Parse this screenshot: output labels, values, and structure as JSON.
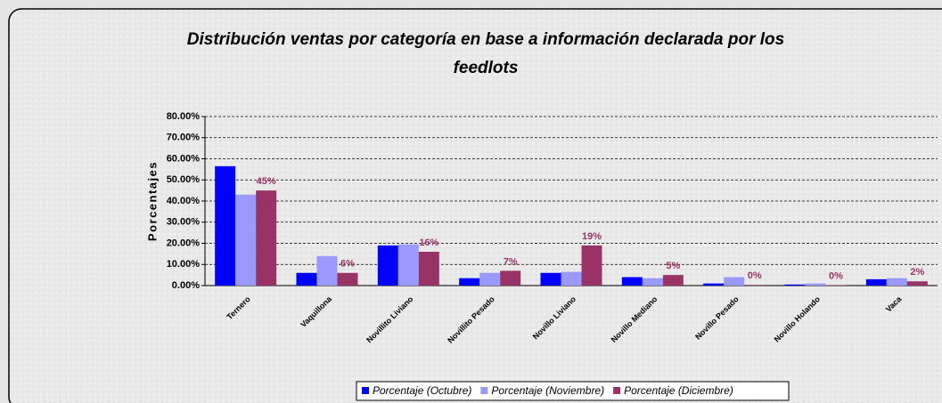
{
  "chart_data": {
    "type": "bar",
    "title": "Distribución ventas por categoría en base a información declarada por los feedlots",
    "ylabel": "Porcentajes",
    "categories": [
      "Ternero",
      "Vaquillona",
      "Novillito Liviano",
      "Novillito Pesado",
      "Novillo Liviano",
      "Novillo Mediano",
      "Novillo Pesado",
      "Novillo Holando",
      "Vaca"
    ],
    "series": [
      {
        "name": "Porcentaje (Octubre)",
        "color": "#0000ff",
        "values": [
          56.5,
          6,
          19,
          3.5,
          6,
          4,
          1,
          0.5,
          3
        ]
      },
      {
        "name": "Porcentaje (Noviembre)",
        "color": "#9999ff",
        "values": [
          43,
          14,
          19.5,
          6,
          6.5,
          3.5,
          4,
          1,
          3.5
        ]
      },
      {
        "name": "Porcentaje (Diciembre)",
        "color": "#993366",
        "values": [
          45,
          6,
          16,
          7,
          19,
          5,
          0.3,
          0.2,
          2
        ],
        "value_labels": [
          "45%",
          "6%",
          "16%",
          "7%",
          "19%",
          "5%",
          "0%",
          "0%",
          "2%"
        ]
      }
    ],
    "ylim": [
      0,
      80
    ],
    "yticks": [
      {
        "value": 0,
        "label": "0.00%"
      },
      {
        "value": 10,
        "label": "10.00%"
      },
      {
        "value": 20,
        "label": "20.00%"
      },
      {
        "value": 30,
        "label": "30.00%"
      },
      {
        "value": 40,
        "label": "40.00%"
      },
      {
        "value": 50,
        "label": "50.00%"
      },
      {
        "value": 60,
        "label": "60.00%"
      },
      {
        "value": 70,
        "label": "70.00%"
      },
      {
        "value": 80,
        "label": "80.00%"
      }
    ],
    "grid": true,
    "legend": "bottom"
  }
}
